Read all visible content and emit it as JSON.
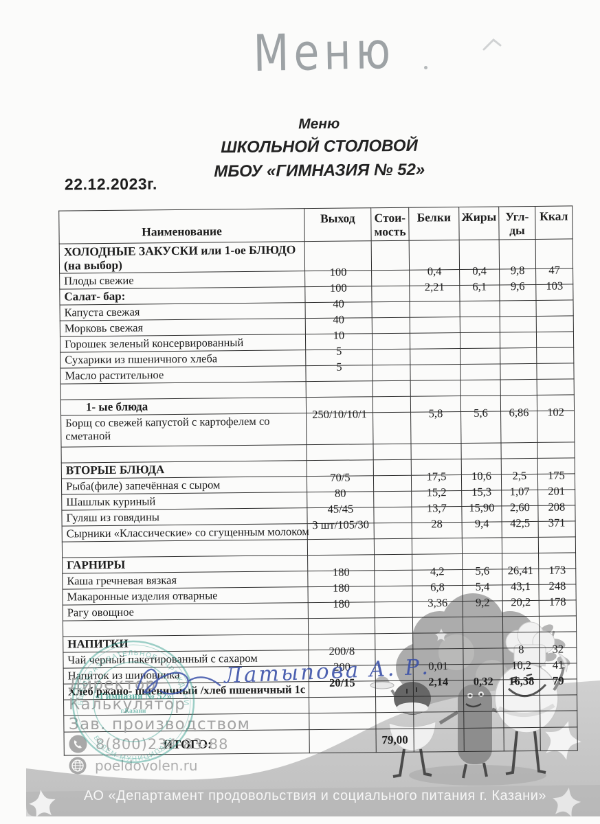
{
  "header": {
    "handwritten_title": "Меню",
    "title_line1": "Меню",
    "title_line2": "ШКОЛЬНОЙ СТОЛОВОЙ",
    "title_line3": "МБОУ «ГИМНАЗИЯ № 52»",
    "date": "22.12.2023г."
  },
  "table": {
    "headers": [
      "Наименование",
      "Выход",
      "Стои-\nмость",
      "Белки",
      "Жиры",
      "Угл-\nды",
      "Ккал"
    ],
    "rows": [
      {
        "type": "section2",
        "name": "ХОЛОДНЫЕ ЗАКУСКИ или 1-ое БЛЮДО (на выбор)"
      },
      {
        "type": "item",
        "name": "Плоды свежие",
        "output": "100",
        "protein": "0,4",
        "fat": "0,4",
        "carbs": "9,8",
        "kcal": "47"
      },
      {
        "type": "section",
        "name": "Салат- бар:",
        "output": "100",
        "protein": "2,21",
        "fat": "6,1",
        "carbs": "9,6",
        "kcal": "103"
      },
      {
        "type": "item",
        "name": "Капуста свежая",
        "output": "40"
      },
      {
        "type": "item",
        "name": "Морковь свежая",
        "output": "40"
      },
      {
        "type": "item",
        "name": "Горошек зеленый консервированный",
        "output": "10"
      },
      {
        "type": "item",
        "name": "Сухарики из пшеничного хлеба",
        "output": "5"
      },
      {
        "type": "item",
        "name": "Масло растительное",
        "output": "5"
      },
      {
        "type": "empty"
      },
      {
        "type": "section",
        "name": "1- ые блюда",
        "indent": true
      },
      {
        "type": "item2",
        "name": "Борщ со свежей капустой с картофелем со сметаной",
        "output": "250/10/10/1",
        "protein": "5,8",
        "fat": "5,6",
        "carbs": "6,86",
        "kcal": "102"
      },
      {
        "type": "empty"
      },
      {
        "type": "section",
        "name": "ВТОРЫЕ БЛЮДА"
      },
      {
        "type": "item",
        "name": "Рыба(филе) запечённая с сыром",
        "output": "70/5",
        "protein": "17,5",
        "fat": "10,6",
        "carbs": "2,5",
        "kcal": "175"
      },
      {
        "type": "item",
        "name": "Шашлык куриный",
        "output": "80",
        "protein": "15,2",
        "fat": "15,3",
        "carbs": "1,07",
        "kcal": "201"
      },
      {
        "type": "item",
        "name": "Гуляш из говядины",
        "output": "45/45",
        "protein": "13,7",
        "fat": "15,90",
        "carbs": "2,60",
        "kcal": "208"
      },
      {
        "type": "item",
        "name": "Сырники «Классические» со сгущенным молоком",
        "output": "3 шт/105/30",
        "protein": "28",
        "fat": "9,4",
        "carbs": "42,5",
        "kcal": "371"
      },
      {
        "type": "empty"
      },
      {
        "type": "section",
        "name": "ГАРНИРЫ"
      },
      {
        "type": "item",
        "name": "Каша гречневая вязкая",
        "output": "180",
        "protein": "4,2",
        "fat": "5,6",
        "carbs": "26,41",
        "kcal": "173"
      },
      {
        "type": "item",
        "name": "Макаронные изделия отварные",
        "output": "180",
        "protein": "6,8",
        "fat": "5,4",
        "carbs": "43,1",
        "kcal": "248"
      },
      {
        "type": "item",
        "name": "Рагу овощное",
        "output": "180",
        "protein": "3,36",
        "fat": "9,2",
        "carbs": "20,2",
        "kcal": "178"
      },
      {
        "type": "empty"
      },
      {
        "type": "section",
        "name": "НАПИТКИ"
      },
      {
        "type": "item",
        "name": "Чай черный пакетированный с сахаром",
        "output": "200/8",
        "carbs": "8",
        "kcal": "32"
      },
      {
        "type": "item",
        "name": "Напиток из шиповника",
        "output": "200",
        "protein": "0,01",
        "carbs": "10,2",
        "kcal": "41"
      },
      {
        "type": "item",
        "name": "Хлеб ржано- пшеничный /хлеб пшеничный 1с",
        "output": "20/15",
        "protein": "2,14",
        "fat": "0,32",
        "carbs": "16,38",
        "kcal": "79",
        "bold": true
      },
      {
        "type": "empty"
      },
      {
        "type": "empty2"
      },
      {
        "type": "total",
        "name": "ИТОГО:",
        "cost": "79,00"
      }
    ]
  },
  "footer": {
    "signature_name": "Латыпова А. Р.",
    "roles": {
      "director": "Директор",
      "calculator": "Калькулятор",
      "production": "Зав. производством"
    },
    "phone": "8(800)234-83-88",
    "website": "poeldovolen.ru",
    "banner": "АО «Департамент продовольствия и социального питания г. Казани»",
    "stamp": {
      "ring_text_top": "ОБЩЕОБРАЗОВАТЕЛЬНОЕ УЧРЕЖДЕНИЕ",
      "ring_text_bottom": "БЕЛЕМ МУНИЦИПАЛЬ",
      "center_line1": "«Гимназия № 52»",
      "center_line2": "г.Казани"
    }
  },
  "colors": {
    "stamp_green": "#2f9b8a",
    "signature_blue": "#3b51a8",
    "footer_text_gray": "#a2a2a2"
  }
}
